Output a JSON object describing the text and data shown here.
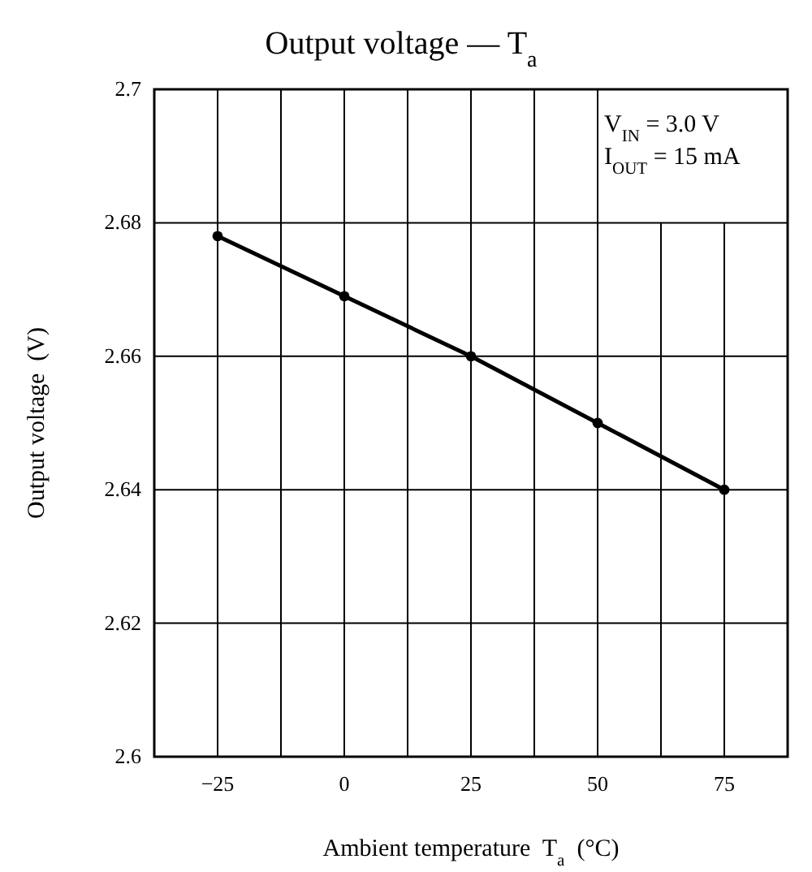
{
  "chart_data": {
    "type": "line",
    "title": "Output voltage — T$_{a}$",
    "xlabel": "Ambient temperature  T$_{a}$  (°C)",
    "ylabel": "Output voltage  (V)",
    "x": [
      -25,
      0,
      25,
      50,
      75
    ],
    "series": [
      {
        "color": "#000000",
        "values": [
          2.678,
          2.669,
          2.66,
          2.65,
          2.64
        ]
      }
    ],
    "xlim": [
      -37.5,
      87.5
    ],
    "xticks": [
      {
        "value": -37.5,
        "label": null
      },
      -25,
      {
        "value": -12.5,
        "label": null
      },
      0,
      {
        "value": 12.5,
        "label": null
      },
      25,
      {
        "value": 37.5,
        "label": null
      },
      50,
      {
        "value": 62.5,
        "label": null
      },
      75,
      {
        "value": 87.5,
        "label": null
      }
    ],
    "ylim": [
      2.6,
      2.7
    ],
    "yticks": [
      2.6,
      2.62,
      2.64,
      2.66,
      2.68,
      2.7
    ],
    "annotations": [
      "V$_{IN}$ = 3.0 V",
      "I$_{OUT}$ = 15 mA"
    ],
    "grid": true,
    "marker": "circle",
    "line_style": "solid"
  }
}
